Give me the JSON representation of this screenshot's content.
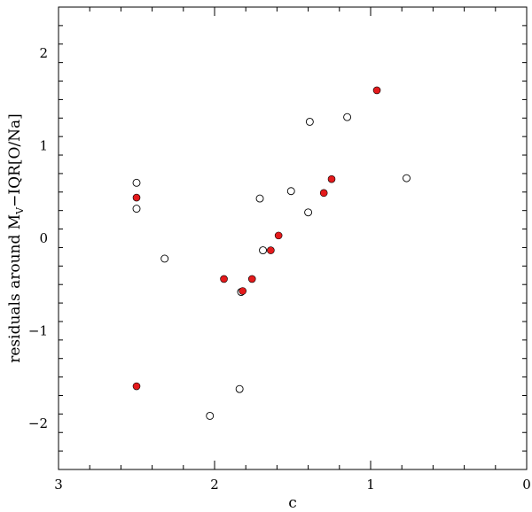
{
  "chart_data": {
    "type": "scatter",
    "title": "",
    "xlabel": "c",
    "ylabel_main": "residuals around M",
    "ylabel_sub": "V",
    "ylabel_tail": "−IQR[O/Na]",
    "xlim": [
      3,
      0
    ],
    "ylim": [
      -2.5,
      2.5
    ],
    "x_ticks": [
      3,
      2,
      1,
      0
    ],
    "x_tick_labels": [
      "3",
      "2",
      "1",
      "0"
    ],
    "y_ticks": [
      -2,
      -1,
      0,
      1,
      2
    ],
    "y_tick_labels": [
      "−2",
      "−1",
      "0",
      "1",
      "2"
    ],
    "grid": false,
    "series": [
      {
        "marker": "open-circle",
        "color": "#000000",
        "points": [
          {
            "x": 2.5,
            "y": 0.6
          },
          {
            "x": 2.5,
            "y": 0.32
          },
          {
            "x": 2.32,
            "y": -0.22
          },
          {
            "x": 2.03,
            "y": -1.92
          },
          {
            "x": 1.84,
            "y": -1.63
          },
          {
            "x": 1.83,
            "y": -0.58
          },
          {
            "x": 1.71,
            "y": 0.43
          },
          {
            "x": 1.69,
            "y": -0.13
          },
          {
            "x": 1.51,
            "y": 0.51
          },
          {
            "x": 1.4,
            "y": 0.28
          },
          {
            "x": 1.39,
            "y": 1.26
          },
          {
            "x": 1.15,
            "y": 1.31
          },
          {
            "x": 0.77,
            "y": 0.65
          }
        ]
      },
      {
        "marker": "filled-circle",
        "color": "#e41a1c",
        "points": [
          {
            "x": 2.5,
            "y": 0.44
          },
          {
            "x": 2.5,
            "y": -1.6
          },
          {
            "x": 1.94,
            "y": -0.44
          },
          {
            "x": 1.82,
            "y": -0.57
          },
          {
            "x": 1.76,
            "y": -0.44
          },
          {
            "x": 1.64,
            "y": -0.13
          },
          {
            "x": 1.59,
            "y": 0.03
          },
          {
            "x": 1.3,
            "y": 0.49
          },
          {
            "x": 1.25,
            "y": 0.64
          },
          {
            "x": 0.96,
            "y": 1.6
          }
        ]
      }
    ]
  }
}
